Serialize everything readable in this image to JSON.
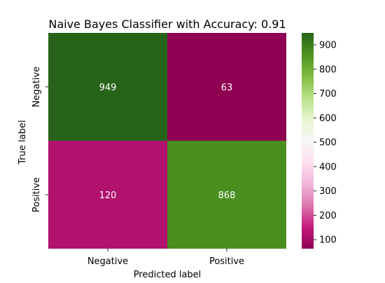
{
  "chart_data": {
    "type": "heatmap",
    "title": "Naive Bayes Classifier with Accuracy: 0.91",
    "xlabel": "Predicted label",
    "ylabel": "True label",
    "x_categories": [
      "Negative",
      "Positive"
    ],
    "y_categories": [
      "Negative",
      "Positive"
    ],
    "values": [
      [
        949,
        63
      ],
      [
        120,
        868
      ]
    ],
    "colormap": "PiYG",
    "colorbar": {
      "min": 63,
      "max": 949,
      "ticks": [
        100,
        200,
        300,
        400,
        500,
        600,
        700,
        800,
        900
      ]
    },
    "annotation_color": "#ffffff"
  }
}
